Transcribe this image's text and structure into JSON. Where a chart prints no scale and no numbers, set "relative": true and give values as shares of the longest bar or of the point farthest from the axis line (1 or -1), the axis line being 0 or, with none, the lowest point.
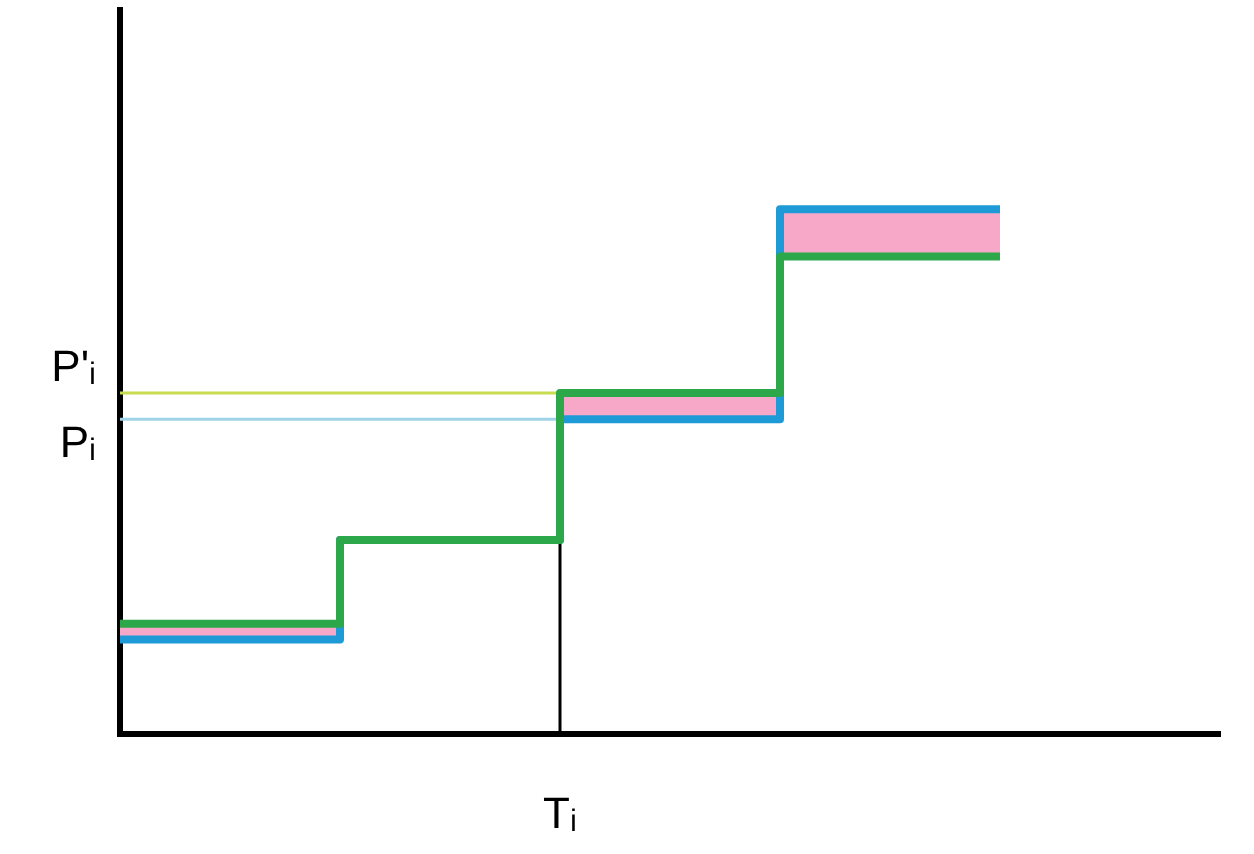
{
  "chart_data": {
    "type": "step",
    "relative": true,
    "categories": [
      null,
      null,
      null,
      null,
      null,
      null
    ],
    "annotations": [
      "Tᵢ"
    ],
    "series": [
      {
        "color": "#1e9ad6",
        "values": [
          0.18,
          0.37,
          0.6,
          1,
          1,
          null
        ],
        "lower": [
          0.18,
          0.37,
          0.6,
          0.91,
          0.91,
          null
        ],
        "upper": [
          0.21,
          0.37,
          0.65,
          1,
          1,
          null
        ]
      },
      {
        "color": "#2ca84a",
        "values": [
          0.21,
          0.37,
          0.65,
          0.91,
          0.91,
          null
        ]
      }
    ],
    "ref_lines": [
      {
        "axis": "y",
        "value": 0.65,
        "label": "P'ᵢ",
        "color": "#c8dc50"
      },
      {
        "axis": "y",
        "value": 0.6,
        "label": "Pᵢ",
        "color": "#9fd4e8"
      }
    ],
    "grid": false,
    "legend": false,
    "marker": "none",
    "line_style": "solid"
  }
}
